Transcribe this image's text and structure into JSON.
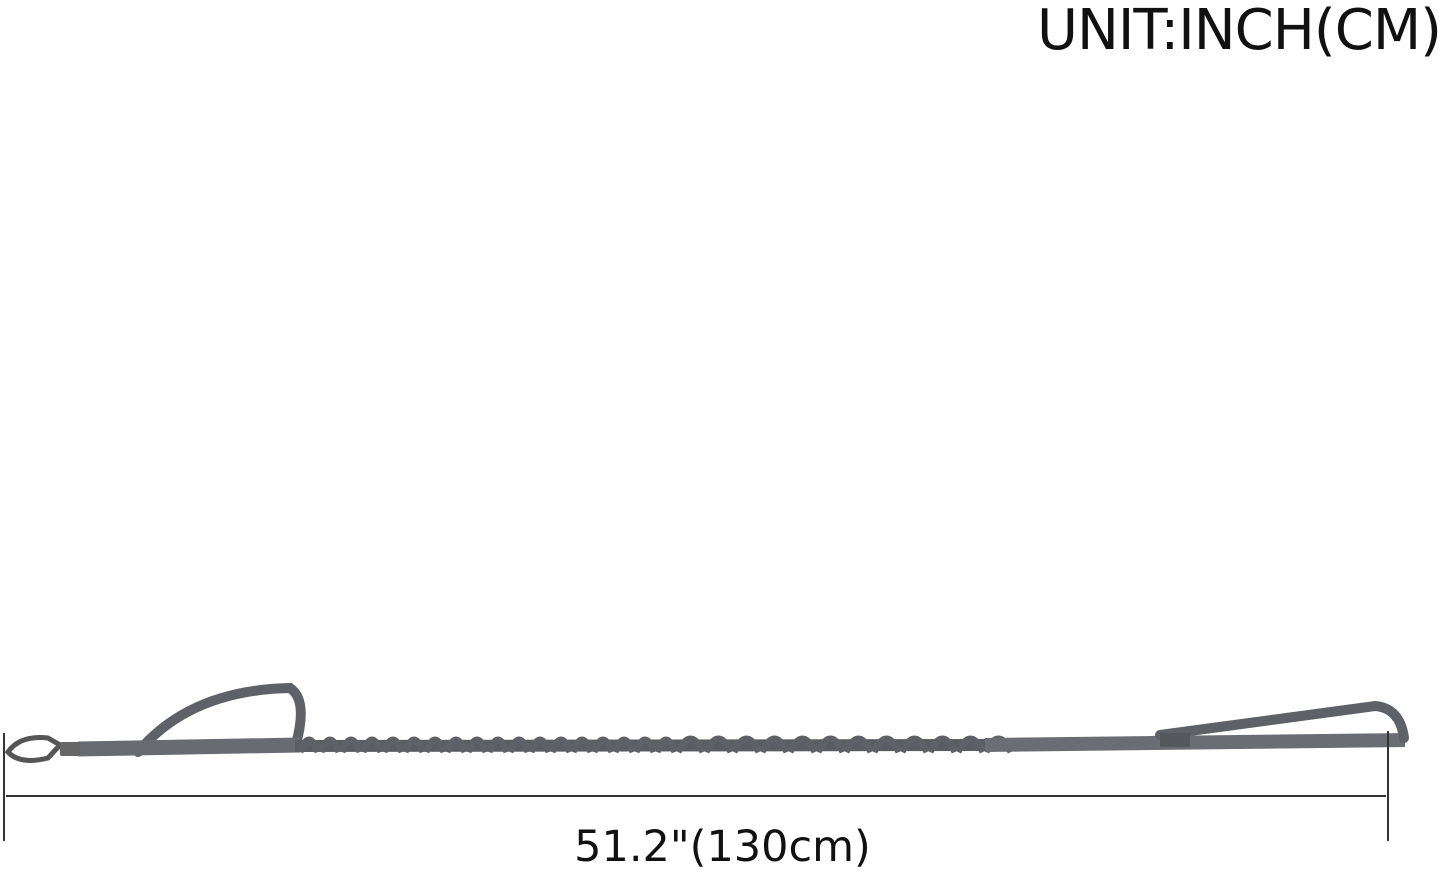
{
  "unit_label": "UNIT:INCH(CM)",
  "dimension_label": "51.2\"(130cm)",
  "colors": {
    "leash": "#5e6268",
    "line": "#333333",
    "text": "#111111"
  }
}
